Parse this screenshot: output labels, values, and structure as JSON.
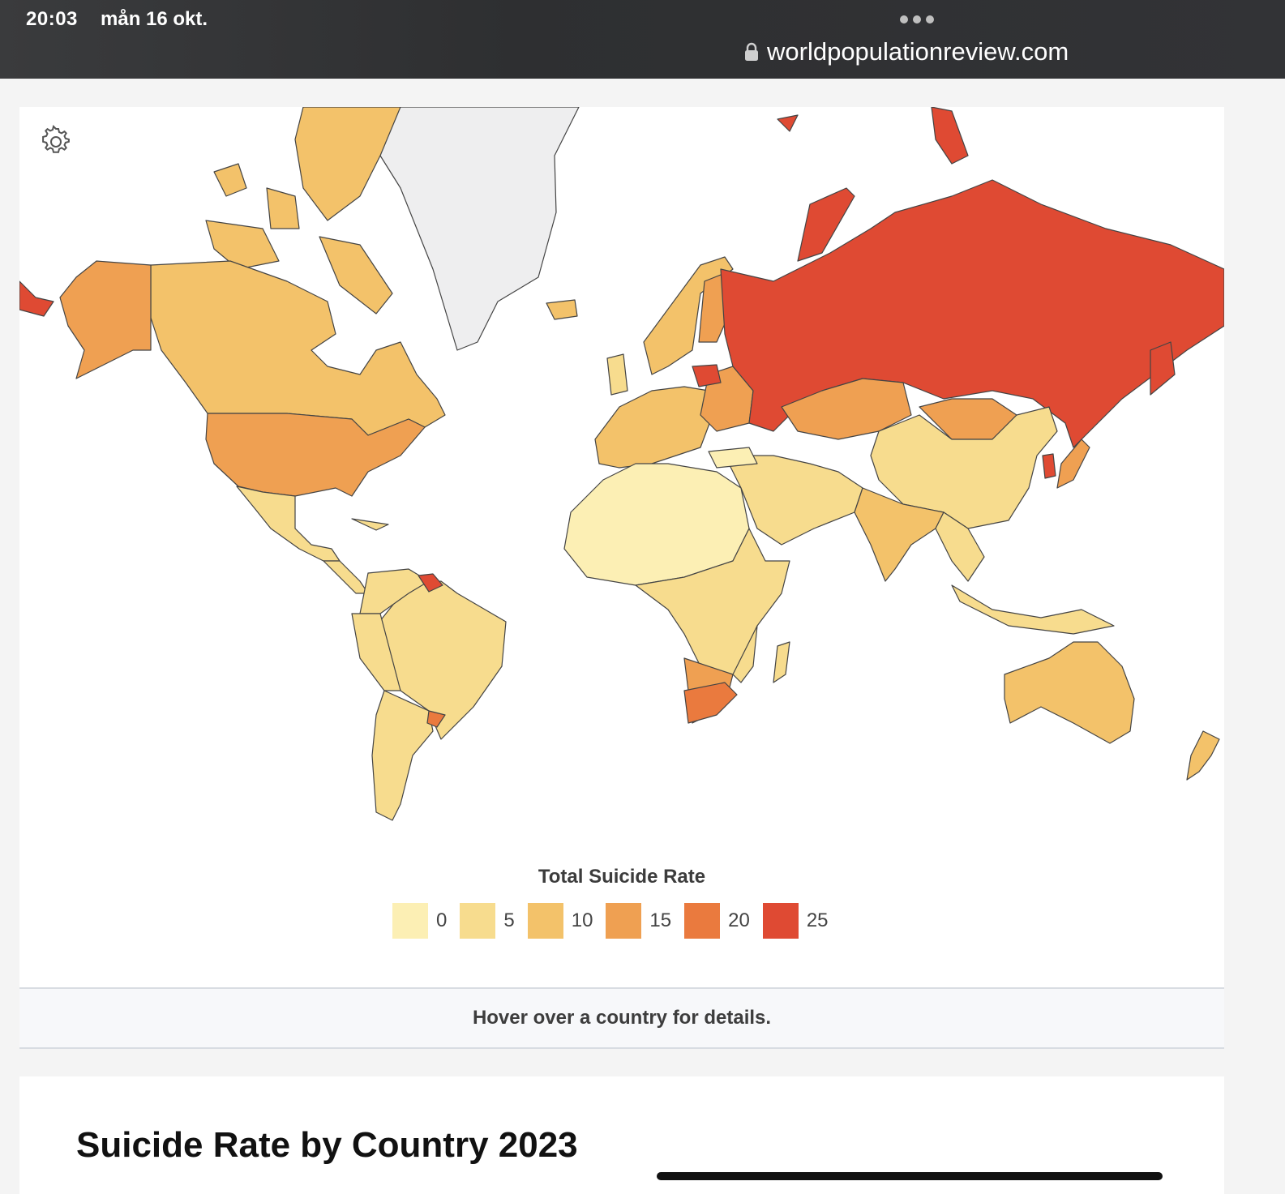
{
  "status_bar": {
    "time": "20:03",
    "date": "mån 16 okt."
  },
  "browser": {
    "url": "worldpopulationreview.com"
  },
  "map": {
    "legend_title": "Total Suicide Rate",
    "legend": [
      {
        "label": "0",
        "color": "#fcefb4"
      },
      {
        "label": "5",
        "color": "#f7dc8e"
      },
      {
        "label": "10",
        "color": "#f3c26a"
      },
      {
        "label": "15",
        "color": "#efa052"
      },
      {
        "label": "20",
        "color": "#ea7a3e"
      },
      {
        "label": "25",
        "color": "#df4a33"
      }
    ],
    "no_data_color": "#eeeeef",
    "hover_hint": "Hover over a country for details."
  },
  "content": {
    "heading": "Suicide Rate by Country 2023"
  },
  "icons": {
    "settings": "gear-icon",
    "lock": "lock-icon"
  }
}
